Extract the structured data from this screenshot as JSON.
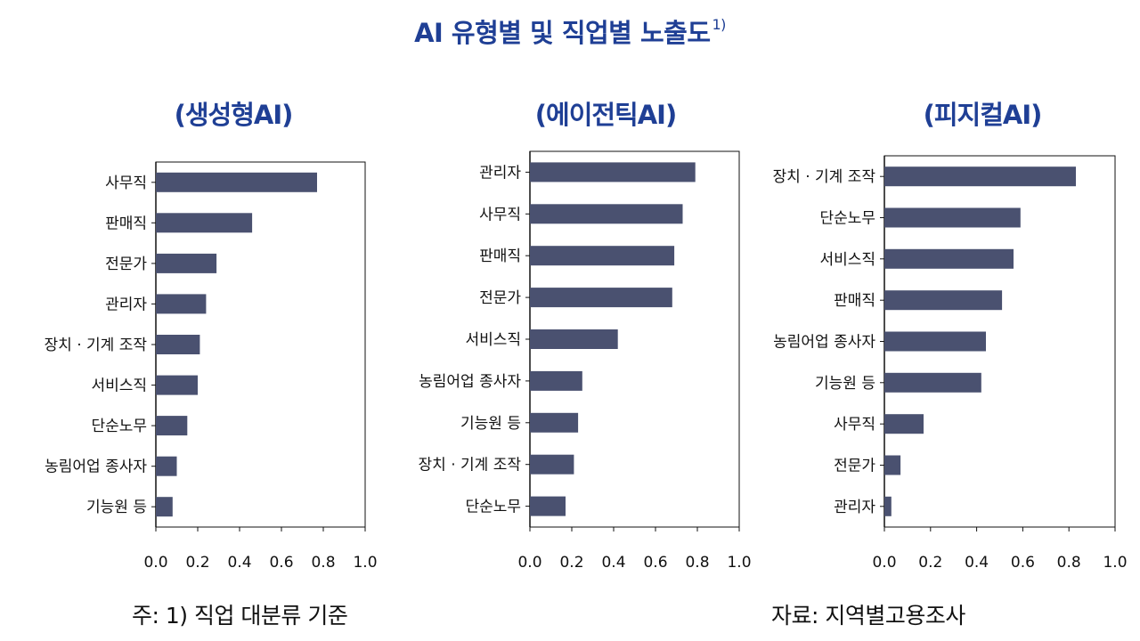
{
  "title": "AI 유형별 및 직업별 노출도",
  "title_sup": "1)",
  "note": "주: 1) 직업 대분류 기준",
  "source": "자료: 지역별고용조사",
  "colors": {
    "bar": "#4a5170",
    "title": "#1f3f95",
    "frame": "#111111"
  },
  "chart_data": [
    {
      "type": "bar",
      "orientation": "horizontal",
      "title": "(생성형AI)",
      "categories": [
        "사무직",
        "판매직",
        "전문가",
        "관리자",
        "장치 · 기계 조작",
        "서비스직",
        "단순노무",
        "농림어업 종사자",
        "기능원 등"
      ],
      "values": [
        0.77,
        0.46,
        0.29,
        0.24,
        0.21,
        0.2,
        0.15,
        0.1,
        0.08
      ],
      "xlim": [
        0.0,
        1.0
      ],
      "xticks": [
        "0.0",
        "0.2",
        "0.4",
        "0.6",
        "0.8",
        "1.0"
      ],
      "grid": false
    },
    {
      "type": "bar",
      "orientation": "horizontal",
      "title": "(에이전틱AI)",
      "categories": [
        "관리자",
        "사무직",
        "판매직",
        "전문가",
        "서비스직",
        "농림어업 종사자",
        "기능원 등",
        "장치 · 기계 조작",
        "단순노무"
      ],
      "values": [
        0.79,
        0.73,
        0.69,
        0.68,
        0.42,
        0.25,
        0.23,
        0.21,
        0.17
      ],
      "xlim": [
        0.0,
        1.0
      ],
      "xticks": [
        "0.0",
        "0.2",
        "0.4",
        "0.6",
        "0.8",
        "1.0"
      ],
      "grid": false
    },
    {
      "type": "bar",
      "orientation": "horizontal",
      "title": "(피지컬AI)",
      "categories": [
        "장치 · 기계 조작",
        "단순노무",
        "서비스직",
        "판매직",
        "농림어업 종사자",
        "기능원 등",
        "사무직",
        "전문가",
        "관리자"
      ],
      "values": [
        0.83,
        0.59,
        0.56,
        0.51,
        0.44,
        0.42,
        0.17,
        0.07,
        0.03
      ],
      "xlim": [
        0.0,
        1.0
      ],
      "xticks": [
        "0.0",
        "0.2",
        "0.4",
        "0.6",
        "0.8",
        "1.0"
      ],
      "grid": false
    }
  ]
}
